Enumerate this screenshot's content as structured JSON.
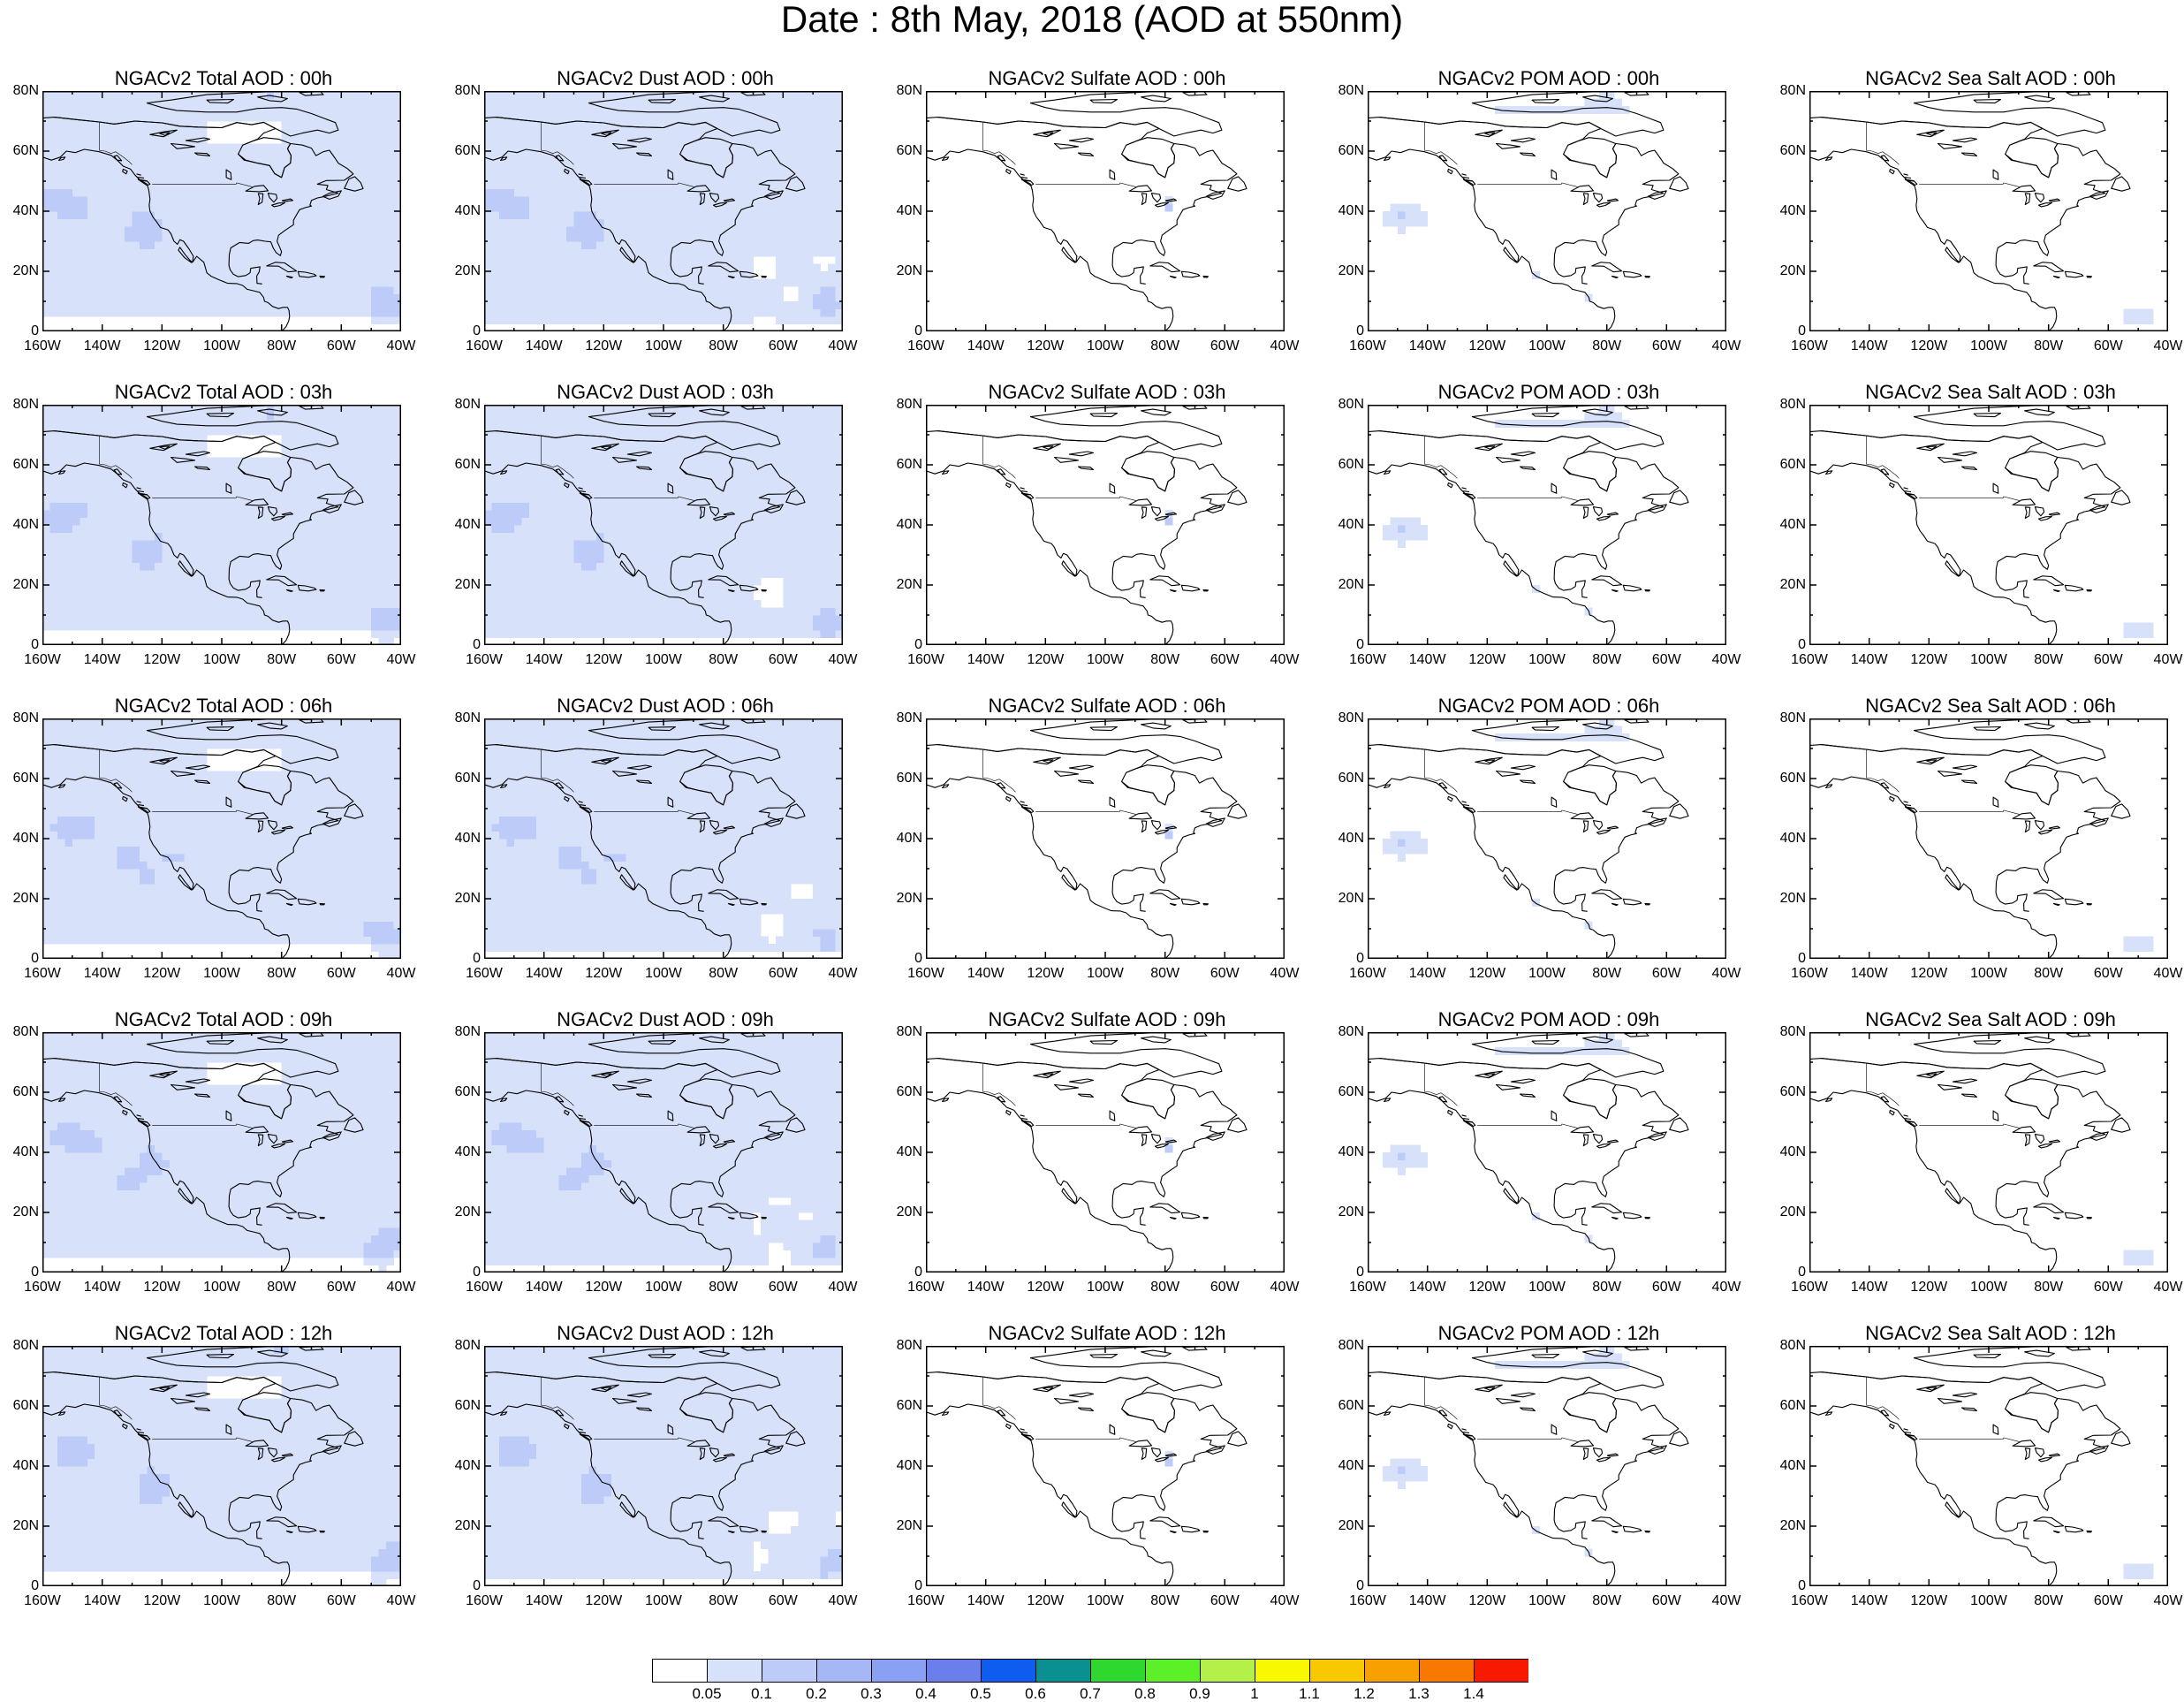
{
  "title": "Date : 8th May, 2018 (AOD at 550nm)",
  "lat_ticks": [
    "80N",
    "60N",
    "40N",
    "20N",
    "0"
  ],
  "lon_ticks": [
    "160W",
    "140W",
    "120W",
    "100W",
    "80W",
    "60W",
    "40W"
  ],
  "species": [
    "total",
    "dust",
    "sulfate",
    "pom",
    "seasalt"
  ],
  "panel_titles": [
    [
      "NGACv2 Total AOD : 00h",
      "NGACv2 Dust AOD : 00h",
      "NGACv2 Sulfate AOD : 00h",
      "NGACv2 POM AOD : 00h",
      "NGACv2 Sea Salt AOD : 00h"
    ],
    [
      "NGACv2 Total AOD : 03h",
      "NGACv2 Dust AOD : 03h",
      "NGACv2 Sulfate AOD : 03h",
      "NGACv2 POM AOD : 03h",
      "NGACv2 Sea Salt AOD : 03h"
    ],
    [
      "NGACv2 Total AOD : 06h",
      "NGACv2 Dust AOD : 06h",
      "NGACv2 Sulfate AOD : 06h",
      "NGACv2 POM AOD : 06h",
      "NGACv2 Sea Salt AOD : 06h"
    ],
    [
      "NGACv2 Total AOD : 09h",
      "NGACv2 Dust AOD : 09h",
      "NGACv2 Sulfate AOD : 09h",
      "NGACv2 POM AOD : 09h",
      "NGACv2 Sea Salt  AOD : 09h"
    ],
    [
      "NGACv2 Total AOD  : 12h",
      "NGACv2 Dust AOD : 12h",
      "NGACv2 Sulfate AOD : 12h",
      "NGACv2 POM  AOD : 12h",
      "NGACv2 Sea Salt  AOD : 12h"
    ]
  ],
  "colorbar": {
    "levels": [
      "0.05",
      "0.1",
      "0.2",
      "0.3",
      "0.4",
      "0.5",
      "0.6",
      "0.7",
      "0.8",
      "0.9",
      "1",
      "1.1",
      "1.2",
      "1.3",
      "1.4"
    ],
    "colors": [
      "#ffffff",
      "#d7e1fa",
      "#bccbf7",
      "#a5b8f5",
      "#8aa0f2",
      "#6a7fec",
      "#0e5df0",
      "#0a9090",
      "#2ed82e",
      "#5cf028",
      "#b4f04a",
      "#f8f800",
      "#f8c800",
      "#f8a000",
      "#f87800",
      "#f81a00"
    ]
  }
}
